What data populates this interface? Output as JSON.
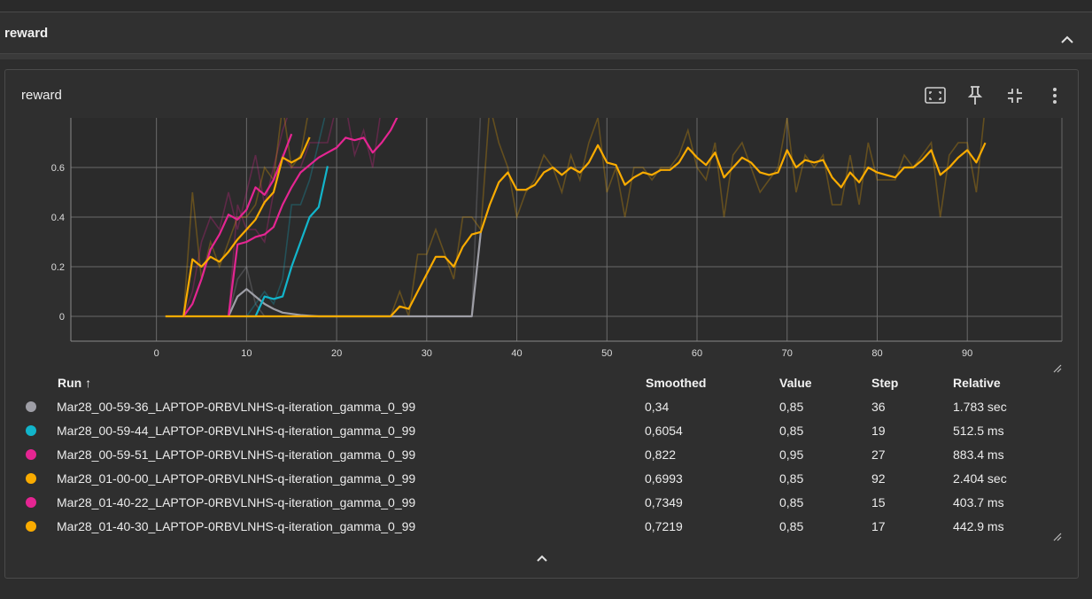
{
  "group": {
    "title": "reward",
    "toggle_icon": "chevron-up-icon"
  },
  "card": {
    "title": "reward",
    "tools": [
      "fit-domain-icon",
      "pin-icon",
      "collapse-arrows-icon",
      "more-vert-icon"
    ],
    "expand_icon": "chevron-up-icon"
  },
  "table": {
    "headers": {
      "run": "Run ↑",
      "smoothed": "Smoothed",
      "value": "Value",
      "step": "Step",
      "relative": "Relative"
    },
    "rows": [
      {
        "color": "#9e9ea6",
        "run": "Mar28_00-59-36_LAPTOP-0RBVLNHS-q-iteration_gamma_0_99",
        "smoothed": "0,34",
        "value": "0,85",
        "step": "36",
        "relative": "1.783 sec"
      },
      {
        "color": "#12b5cb",
        "run": "Mar28_00-59-44_LAPTOP-0RBVLNHS-q-iteration_gamma_0_99",
        "smoothed": "0,6054",
        "value": "0,85",
        "step": "19",
        "relative": "512.5 ms"
      },
      {
        "color": "#e52592",
        "run": "Mar28_00-59-51_LAPTOP-0RBVLNHS-q-iteration_gamma_0_99",
        "smoothed": "0,822",
        "value": "0,95",
        "step": "27",
        "relative": "883.4 ms"
      },
      {
        "color": "#f9ab00",
        "run": "Mar28_01-00-00_LAPTOP-0RBVLNHS-q-iteration_gamma_0_99",
        "smoothed": "0,6993",
        "value": "0,85",
        "step": "92",
        "relative": "2.404 sec"
      },
      {
        "color": "#e52592",
        "run": "Mar28_01-40-22_LAPTOP-0RBVLNHS-q-iteration_gamma_0_99",
        "smoothed": "0,7349",
        "value": "0,85",
        "step": "15",
        "relative": "403.7 ms"
      },
      {
        "color": "#f9ab00",
        "run": "Mar28_01-40-30_LAPTOP-0RBVLNHS-q-iteration_gamma_0_99",
        "smoothed": "0,7219",
        "value": "0,85",
        "step": "17",
        "relative": "442.9 ms"
      }
    ]
  },
  "chart_data": {
    "type": "line",
    "title": "",
    "xlabel": "",
    "ylabel": "",
    "xlim": [
      -9.5,
      100.5
    ],
    "ylim": [
      -0.1,
      0.8
    ],
    "x_ticks": [
      0,
      10,
      20,
      30,
      40,
      50,
      60,
      70,
      80,
      90
    ],
    "x_tick_labels": [
      "0",
      "10",
      "20",
      "30",
      "40",
      "50",
      "60",
      "70",
      "80",
      "90"
    ],
    "y_ticks": [
      0,
      0.2,
      0.4,
      0.6
    ],
    "y_tick_labels": [
      "0",
      "0.2",
      "0.4",
      "0.6"
    ],
    "grid": true,
    "series": [
      {
        "name": "Mar28_00-59-36_LAPTOP-0RBVLNHS-q-iteration_gamma_0_99",
        "color": "#9e9ea6",
        "x": [
          8,
          9,
          10,
          11,
          12,
          13,
          14,
          15,
          16,
          17,
          18,
          19,
          20,
          21,
          22,
          23,
          24,
          25,
          26,
          27,
          28,
          29,
          30,
          31,
          32,
          33,
          34,
          35,
          36
        ],
        "smoothed": [
          0,
          0.08,
          0.11,
          0.08,
          0.05,
          0.03,
          0.015,
          0.01,
          0.005,
          0.002,
          0,
          0,
          0,
          0,
          0,
          0,
          0,
          0,
          0,
          0,
          0,
          0,
          0,
          0,
          0,
          0,
          0,
          0,
          0.34
        ],
        "raw": [
          0,
          0.15,
          0.2,
          0.05,
          0,
          0,
          0,
          0,
          0,
          0,
          0,
          0,
          0,
          0,
          0,
          0,
          0,
          0,
          0,
          0,
          0,
          0,
          0,
          0,
          0,
          0,
          0,
          0,
          0.85
        ]
      },
      {
        "name": "Mar28_00-59-44_LAPTOP-0RBVLNHS-q-iteration_gamma_0_99",
        "color": "#12b5cb",
        "x": [
          10,
          11,
          12,
          13,
          14,
          15,
          16,
          17,
          18,
          19
        ],
        "smoothed": [
          0,
          0,
          0.08,
          0.07,
          0.08,
          0.2,
          0.3,
          0.4,
          0.44,
          0.6054
        ],
        "raw": [
          0,
          0.05,
          0.1,
          0.05,
          0.15,
          0.45,
          0.45,
          0.55,
          0.7,
          0.85
        ]
      },
      {
        "name": "Mar28_00-59-51_LAPTOP-0RBVLNHS-q-iteration_gamma_0_99",
        "color": "#e52592",
        "x": [
          8,
          9,
          10,
          11,
          12,
          13,
          14,
          15,
          16,
          17,
          18,
          19,
          20,
          21,
          22,
          23,
          24,
          25,
          26,
          27
        ],
        "smoothed": [
          0,
          0.29,
          0.3,
          0.32,
          0.33,
          0.36,
          0.45,
          0.52,
          0.58,
          0.61,
          0.64,
          0.66,
          0.68,
          0.72,
          0.71,
          0.72,
          0.66,
          0.7,
          0.75,
          0.822
        ],
        "raw": [
          0,
          0.45,
          0.35,
          0.35,
          0.3,
          0.5,
          0.65,
          0.6,
          0.6,
          0.7,
          0.7,
          0.7,
          0.85,
          0.85,
          0.65,
          0.75,
          0.6,
          0.85,
          0.85,
          0.95
        ]
      },
      {
        "name": "Mar28_01-00-00_LAPTOP-0RBVLNHS-q-iteration_gamma_0_99",
        "color": "#f9ab00",
        "x": [
          1,
          2,
          3,
          4,
          5,
          6,
          7,
          8,
          9,
          10,
          11,
          12,
          13,
          14,
          15,
          16,
          17,
          18,
          19,
          20,
          21,
          22,
          23,
          24,
          25,
          26,
          27,
          28,
          29,
          30,
          31,
          32,
          33,
          34,
          35,
          36,
          37,
          38,
          39,
          40,
          41,
          42,
          43,
          44,
          45,
          46,
          47,
          48,
          49,
          50,
          51,
          52,
          53,
          54,
          55,
          56,
          57,
          58,
          59,
          60,
          61,
          62,
          63,
          64,
          65,
          66,
          67,
          68,
          69,
          70,
          71,
          72,
          73,
          74,
          75,
          76,
          77,
          78,
          79,
          80,
          81,
          82,
          83,
          84,
          85,
          86,
          87,
          88,
          89,
          90,
          91,
          92
        ],
        "smoothed": [
          0,
          0,
          0,
          0,
          0,
          0,
          0,
          0,
          0,
          0,
          0,
          0,
          0,
          0,
          0,
          0,
          0,
          0,
          0,
          0,
          0,
          0,
          0,
          0,
          0,
          0,
          0.04,
          0.03,
          0.1,
          0.17,
          0.24,
          0.24,
          0.2,
          0.28,
          0.33,
          0.34,
          0.45,
          0.54,
          0.58,
          0.51,
          0.51,
          0.53,
          0.58,
          0.6,
          0.57,
          0.6,
          0.58,
          0.62,
          0.69,
          0.62,
          0.61,
          0.53,
          0.56,
          0.58,
          0.57,
          0.59,
          0.59,
          0.62,
          0.68,
          0.64,
          0.61,
          0.66,
          0.56,
          0.6,
          0.64,
          0.62,
          0.58,
          0.57,
          0.58,
          0.67,
          0.6,
          0.63,
          0.62,
          0.63,
          0.56,
          0.52,
          0.58,
          0.54,
          0.6,
          0.58,
          0.57,
          0.56,
          0.6,
          0.6,
          0.63,
          0.67,
          0.57,
          0.6,
          0.64,
          0.67,
          0.62,
          0.6993
        ],
        "raw": [
          0,
          0,
          0,
          0,
          0,
          0,
          0,
          0,
          0,
          0,
          0,
          0,
          0,
          0,
          0,
          0,
          0,
          0,
          0,
          0,
          0,
          0,
          0,
          0,
          0,
          0,
          0.1,
          0,
          0.25,
          0.25,
          0.35,
          0.25,
          0.15,
          0.4,
          0.4,
          0.35,
          0.85,
          0.7,
          0.6,
          0.4,
          0.5,
          0.55,
          0.65,
          0.6,
          0.5,
          0.65,
          0.55,
          0.7,
          0.8,
          0.5,
          0.6,
          0.4,
          0.6,
          0.6,
          0.55,
          0.6,
          0.6,
          0.65,
          0.75,
          0.6,
          0.55,
          0.7,
          0.4,
          0.65,
          0.7,
          0.6,
          0.5,
          0.55,
          0.6,
          0.8,
          0.5,
          0.65,
          0.6,
          0.65,
          0.45,
          0.45,
          0.65,
          0.45,
          0.7,
          0.55,
          0.55,
          0.55,
          0.65,
          0.6,
          0.65,
          0.7,
          0.4,
          0.65,
          0.7,
          0.7,
          0.5,
          0.85
        ]
      },
      {
        "name": "Mar28_01-40-22_LAPTOP-0RBVLNHS-q-iteration_gamma_0_99",
        "color": "#e52592",
        "x": [
          3,
          4,
          5,
          6,
          7,
          8,
          9,
          10,
          11,
          12,
          13,
          14,
          15
        ],
        "smoothed": [
          0,
          0.05,
          0.15,
          0.27,
          0.33,
          0.41,
          0.39,
          0.43,
          0.52,
          0.49,
          0.55,
          0.64,
          0.7349
        ],
        "raw": [
          0,
          0.1,
          0.3,
          0.4,
          0.35,
          0.5,
          0.35,
          0.5,
          0.65,
          0.45,
          0.6,
          0.75,
          0.85
        ]
      },
      {
        "name": "Mar28_01-40-30_LAPTOP-0RBVLNHS-q-iteration_gamma_0_99",
        "color": "#f9ab00",
        "x": [
          3,
          4,
          5,
          6,
          7,
          8,
          9,
          10,
          11,
          12,
          13,
          14,
          15,
          16,
          17
        ],
        "smoothed": [
          0,
          0.23,
          0.2,
          0.24,
          0.22,
          0.26,
          0.31,
          0.35,
          0.39,
          0.46,
          0.5,
          0.64,
          0.62,
          0.64,
          0.7219
        ],
        "raw": [
          0,
          0.5,
          0.15,
          0.3,
          0.2,
          0.3,
          0.4,
          0.4,
          0.45,
          0.6,
          0.55,
          0.85,
          0.6,
          0.65,
          0.85
        ]
      }
    ]
  }
}
